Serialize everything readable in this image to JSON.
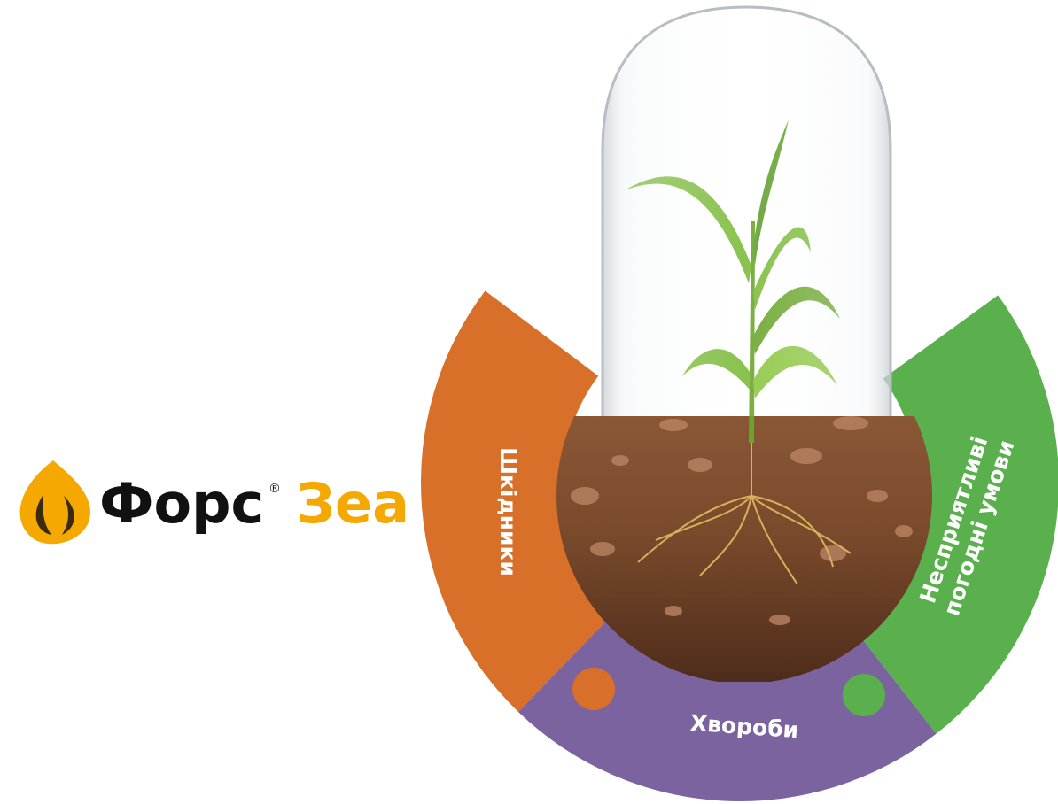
{
  "logo": {
    "brand": "Форс",
    "registered": "®",
    "product": "Зеа"
  },
  "segments": [
    {
      "label": "Шкідники",
      "color": "#d8702a"
    },
    {
      "label": "Хвороби",
      "color": "#7b63a0"
    },
    {
      "label_lines": [
        "Несприятливі",
        "погодні умови"
      ],
      "color": "#5bb04e"
    }
  ]
}
